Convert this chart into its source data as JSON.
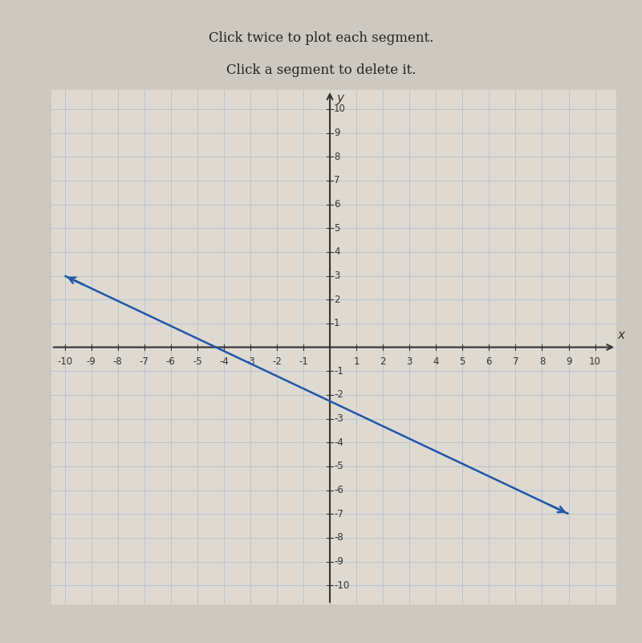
{
  "title_line1": "Click twice to plot each segment.",
  "title_line2": "Click a segment to delete it.",
  "x_start": -10,
  "y_start": 3,
  "x_end": 9,
  "y_end": -7,
  "line_color": "#2255aa",
  "line_width": 1.8,
  "axis_color": "#333333",
  "grid_color": "#aabbc8",
  "background_color": "#cdc9c0",
  "plot_bg_color": "#dedad2",
  "xlim": [
    -10.5,
    10.8
  ],
  "ylim": [
    -10.8,
    10.8
  ],
  "tick_fontsize": 8.5,
  "title_fontsize": 12
}
